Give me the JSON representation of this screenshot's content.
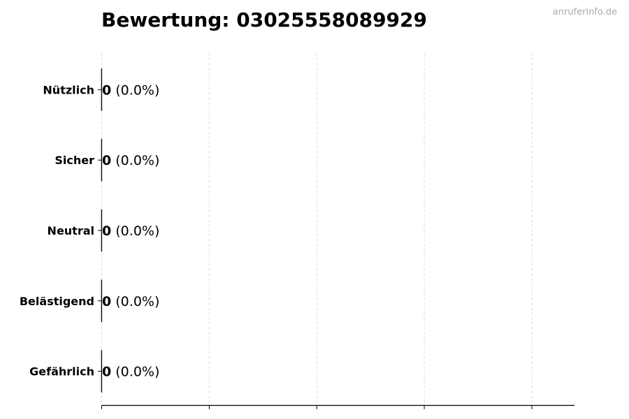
{
  "chart_data": {
    "type": "bar",
    "orientation": "horizontal",
    "title": "Bewertung: 03025558089929",
    "watermark": "anruferinfo.de",
    "categories": [
      "Nützlich",
      "Sicher",
      "Neutral",
      "Belästigend",
      "Gefährlich"
    ],
    "values": [
      0,
      0,
      0,
      0,
      0
    ],
    "value_labels": [
      {
        "count": "0",
        "percent": "(0.0%)"
      },
      {
        "count": "0",
        "percent": "(0.0%)"
      },
      {
        "count": "0",
        "percent": "(0.0%)"
      },
      {
        "count": "0",
        "percent": "(0.0%)"
      },
      {
        "count": "0",
        "percent": "(0.0%)"
      }
    ],
    "xlim": [
      0,
      4.4
    ],
    "xticks": [
      0,
      1,
      2,
      3,
      4
    ],
    "xtick_labels_shown": false,
    "grid": "x dashed",
    "colors": {
      "grid": "#dddddd",
      "axis": "#000000",
      "bar_edge": "#000000"
    }
  }
}
